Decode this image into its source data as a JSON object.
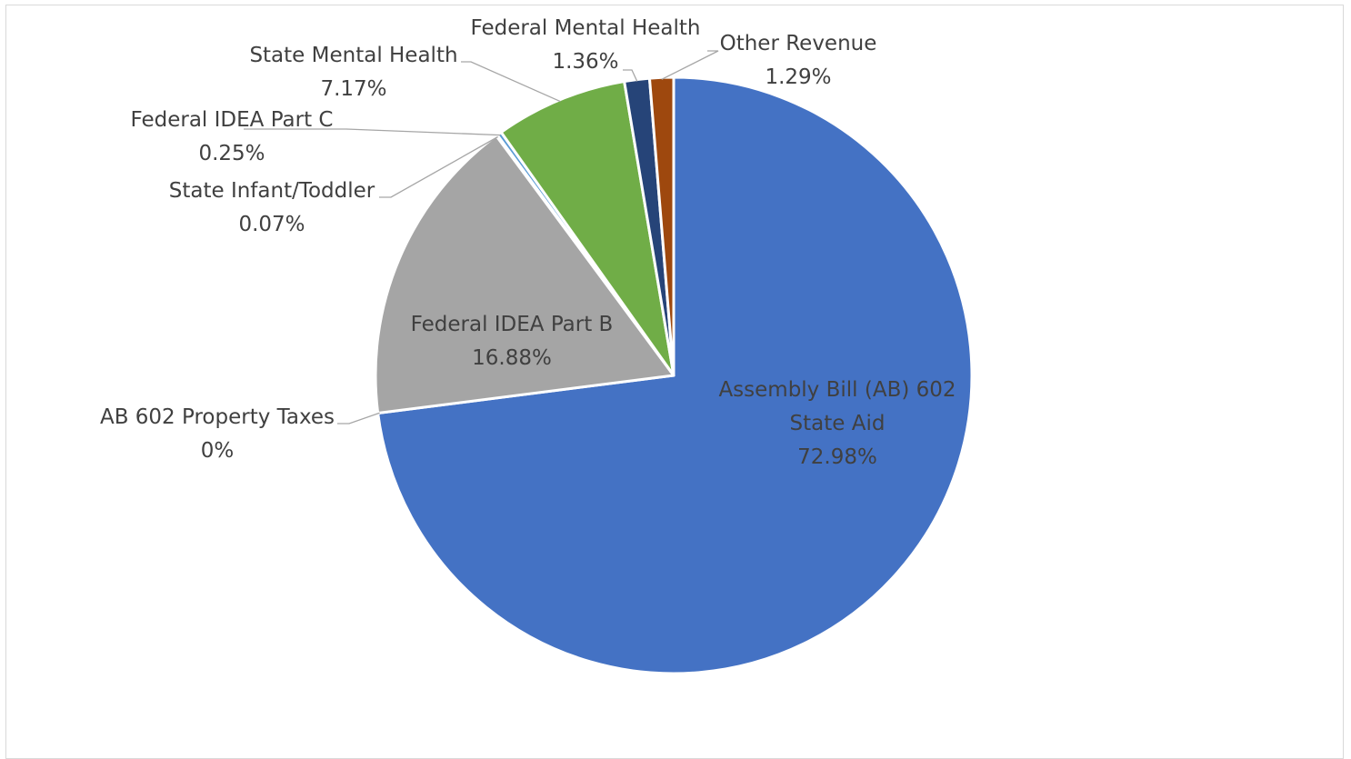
{
  "chart_data": {
    "type": "pie",
    "title": "",
    "slices": [
      {
        "name": "Assembly Bill (AB) 602 State Aid",
        "label_lines": [
          "Assembly Bill (AB) 602",
          "State Aid"
        ],
        "pct_label": "72.98%",
        "value": 72.98,
        "color": "#4472C4"
      },
      {
        "name": "AB 602 Property Taxes",
        "label_lines": [
          "AB 602 Property  Taxes"
        ],
        "pct_label": "0%",
        "value": 0,
        "color": "#ED7D31"
      },
      {
        "name": "Federal IDEA Part B",
        "label_lines": [
          "Federal IDEA Part B"
        ],
        "pct_label": "16.88%",
        "value": 16.88,
        "color": "#A5A5A5"
      },
      {
        "name": "State Infant/Toddler",
        "label_lines": [
          "State Infant/Toddler"
        ],
        "pct_label": "0.07%",
        "value": 0.07,
        "color": "#FFC000"
      },
      {
        "name": "Federal IDEA Part C",
        "label_lines": [
          "Federal IDEA Part C"
        ],
        "pct_label": "0.25%",
        "value": 0.25,
        "color": "#5B9BD5"
      },
      {
        "name": "State Mental Health",
        "label_lines": [
          "State Mental Health"
        ],
        "pct_label": "7.17%",
        "value": 7.17,
        "color": "#70AD47"
      },
      {
        "name": "Federal Mental Health",
        "label_lines": [
          "Federal Mental Health"
        ],
        "pct_label": "1.36%",
        "value": 1.36,
        "color": "#264478"
      },
      {
        "name": "Other Revenue",
        "label_lines": [
          "Other Revenue"
        ],
        "pct_label": "1.29%",
        "value": 1.29,
        "color": "#9E480E"
      }
    ],
    "legend": "none",
    "label_color": "#404040"
  }
}
